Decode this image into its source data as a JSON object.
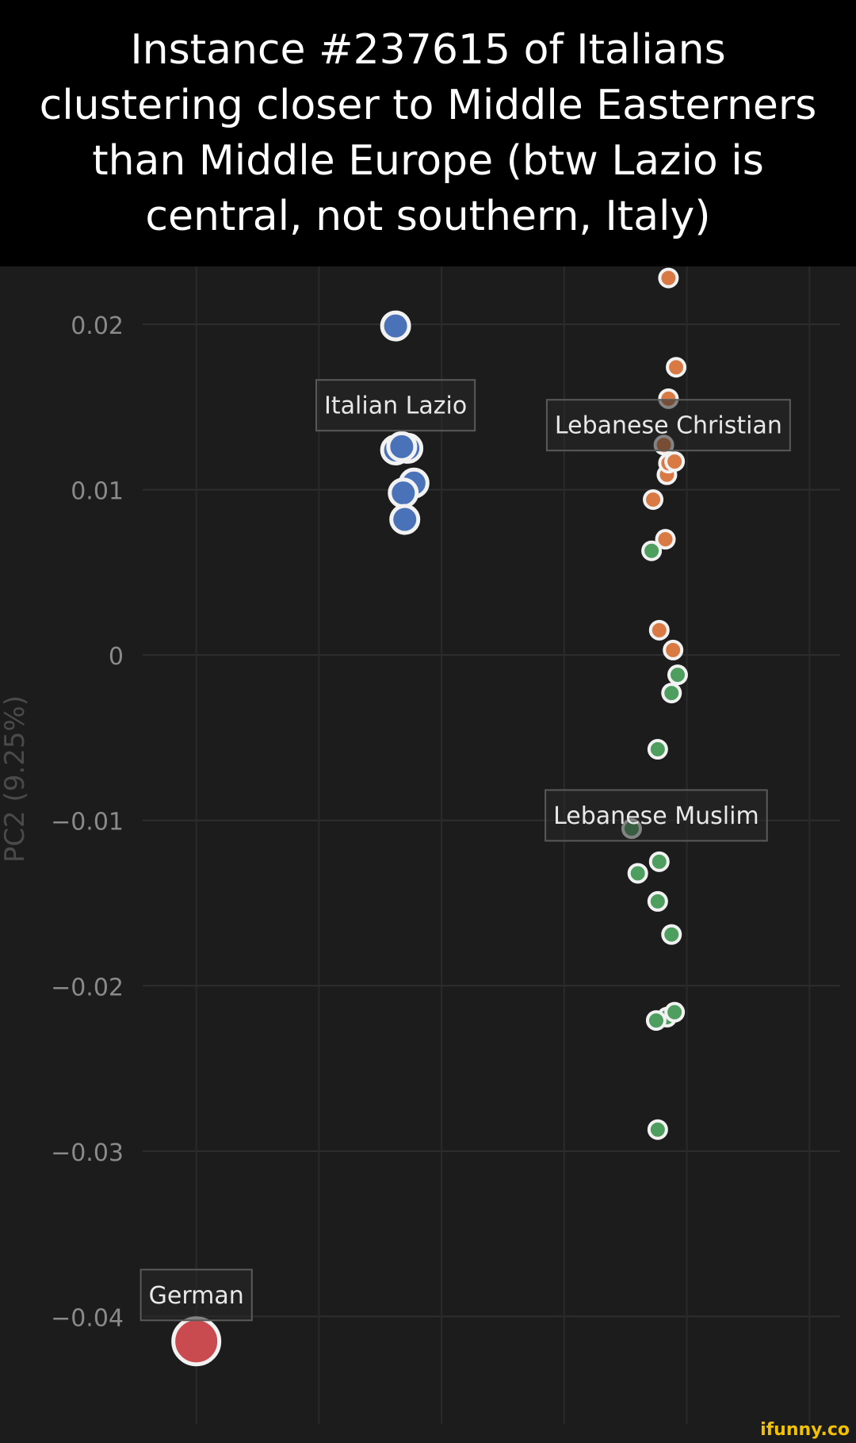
{
  "caption": "Instance #237615 of Italians clustering closer to Middle Easterners than Middle Europe (btw Lazio is central, not southern, Italy)",
  "watermark": "ifunny.co",
  "chart_data": {
    "type": "scatter",
    "ylabel": "PC2 (9.25%)",
    "xlabel": "",
    "ylim": [
      -0.0465,
      0.0235
    ],
    "y_ticks": [
      {
        "value": 0.02,
        "label": "0.02"
      },
      {
        "value": 0.01,
        "label": "0.01"
      },
      {
        "value": 0,
        "label": "0"
      },
      {
        "value": -0.01,
        "label": "−0.01"
      },
      {
        "value": -0.02,
        "label": "−0.02"
      },
      {
        "value": -0.03,
        "label": "−0.03"
      },
      {
        "value": -0.04,
        "label": "−0.04"
      }
    ],
    "x_gridlines": [
      -0.0495,
      -0.0415,
      -0.0335,
      -0.0255,
      -0.0175,
      -0.0095
    ],
    "xlim": [
      -0.053,
      -0.0075
    ],
    "grid": true,
    "series": [
      {
        "name": "Italian Lazio",
        "color": "#4a72b8",
        "point_size": "large",
        "label_at": [
          -0.0365,
          0.0151
        ],
        "points": [
          {
            "x": -0.0365,
            "y": 0.0199
          },
          {
            "x": -0.0365,
            "y": 0.0124
          },
          {
            "x": -0.0357,
            "y": 0.0125
          },
          {
            "x": -0.0361,
            "y": 0.0126
          },
          {
            "x": -0.0353,
            "y": 0.0104
          },
          {
            "x": -0.036,
            "y": 0.0098
          },
          {
            "x": -0.0359,
            "y": 0.0082
          }
        ]
      },
      {
        "name": "Lebanese Christian",
        "color": "#d97a45",
        "point_size": "small",
        "label_at": [
          -0.0187,
          0.0139
        ],
        "points": [
          {
            "x": -0.0187,
            "y": 0.0228
          },
          {
            "x": -0.0182,
            "y": 0.0174
          },
          {
            "x": -0.0187,
            "y": 0.0155
          },
          {
            "x": -0.019,
            "y": 0.0127
          },
          {
            "x": -0.0188,
            "y": 0.0109
          },
          {
            "x": -0.0187,
            "y": 0.0116
          },
          {
            "x": -0.0183,
            "y": 0.0117
          },
          {
            "x": -0.0197,
            "y": 0.0094
          },
          {
            "x": -0.0189,
            "y": 0.007
          },
          {
            "x": -0.0193,
            "y": 0.0015
          },
          {
            "x": -0.0184,
            "y": 0.0003
          }
        ]
      },
      {
        "name": "Lebanese Muslim",
        "color": "#4e9e60",
        "point_size": "small",
        "label_at": [
          -0.0195,
          -0.0097
        ],
        "points": [
          {
            "x": -0.0198,
            "y": 0.0063
          },
          {
            "x": -0.0181,
            "y": -0.0012
          },
          {
            "x": -0.0185,
            "y": -0.0023
          },
          {
            "x": -0.0194,
            "y": -0.0057
          },
          {
            "x": -0.0211,
            "y": -0.0105
          },
          {
            "x": -0.0193,
            "y": -0.0125
          },
          {
            "x": -0.0207,
            "y": -0.0132
          },
          {
            "x": -0.0194,
            "y": -0.0149
          },
          {
            "x": -0.0185,
            "y": -0.0169
          },
          {
            "x": -0.0188,
            "y": -0.0219
          },
          {
            "x": -0.0195,
            "y": -0.0221
          },
          {
            "x": -0.0183,
            "y": -0.0216
          },
          {
            "x": -0.0194,
            "y": -0.0287
          }
        ]
      },
      {
        "name": "German",
        "color": "#c94a4f",
        "point_size": "xlarge",
        "label_at": [
          -0.0495,
          -0.0387
        ],
        "points": [
          {
            "x": -0.0495,
            "y": -0.0415
          }
        ]
      }
    ]
  }
}
